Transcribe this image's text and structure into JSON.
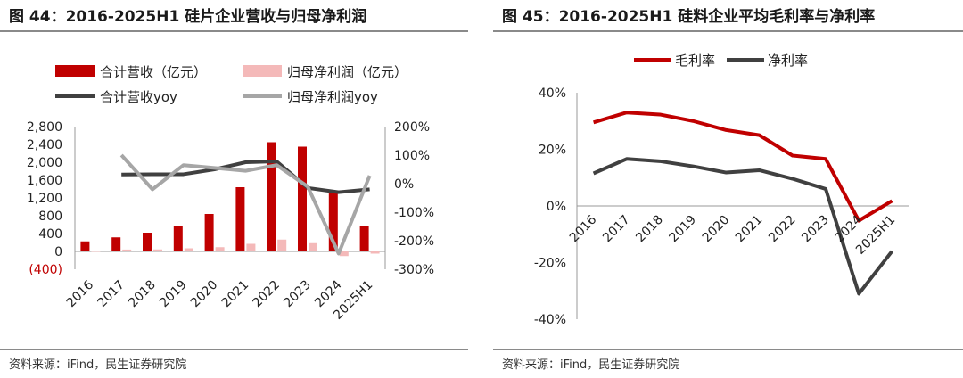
{
  "left": {
    "title": "图 44：2016-2025H1 硅片企业营收与归母净利润",
    "source": "资料来源：iFind，民生证券研究院",
    "chart_data": {
      "type": "bar",
      "categories": [
        "2016",
        "2017",
        "2018",
        "2019",
        "2020",
        "2021",
        "2022",
        "2023",
        "2024",
        "2025H1"
      ],
      "series": [
        {
          "name": "合计营收（亿元）",
          "kind": "bar",
          "axis": "left",
          "color": "#c00000",
          "values": [
            225,
            315,
            420,
            565,
            840,
            1440,
            2450,
            2350,
            1350,
            570
          ]
        },
        {
          "name": "归母净利润（亿元）",
          "kind": "bar",
          "axis": "left",
          "color": "#f4b9b9",
          "values": [
            12,
            42,
            45,
            70,
            95,
            170,
            265,
            185,
            -105,
            -50
          ]
        },
        {
          "name": "合计营收yoy",
          "kind": "line",
          "axis": "right",
          "color": "#404040",
          "values": [
            null,
            32,
            33,
            33,
            50,
            75,
            78,
            -15,
            -30,
            -20
          ]
        },
        {
          "name": "归母净利润yoy",
          "kind": "line",
          "axis": "right",
          "color": "#a6a6a6",
          "values": [
            null,
            100,
            -20,
            65,
            55,
            45,
            65,
            -10,
            -245,
            28
          ]
        }
      ],
      "y_left": {
        "range": [
          -400,
          2800
        ],
        "ticks": [
          "(400)",
          "0",
          "400",
          "800",
          "1,200",
          "1,600",
          "2,000",
          "2,400",
          "2,800"
        ]
      },
      "y_right": {
        "range": [
          -300,
          200
        ],
        "ticks": [
          "-300%",
          "-200%",
          "-100%",
          "0%",
          "100%",
          "200%"
        ]
      },
      "legend_position": "top"
    }
  },
  "right": {
    "title": "图 45：2016-2025H1 硅料企业平均毛利率与净利率",
    "source": "资料来源：iFind，民生证券研究院",
    "chart_data": {
      "type": "line",
      "categories": [
        "2016",
        "2017",
        "2018",
        "2019",
        "2020",
        "2021",
        "2022",
        "2023",
        "2024",
        "2025H1"
      ],
      "series": [
        {
          "name": "毛利率",
          "color": "#c00000",
          "values": [
            29.5,
            33,
            32.3,
            30,
            26.8,
            25,
            17.8,
            16.6,
            -5.2,
            1.8
          ]
        },
        {
          "name": "净利率",
          "color": "#404040",
          "values": [
            11.5,
            16.6,
            15.8,
            14,
            11.8,
            12.6,
            9.6,
            6,
            -31,
            -16
          ]
        }
      ],
      "y": {
        "range": [
          -40,
          40
        ],
        "ticks": [
          "40%",
          "20%",
          "0%",
          "-20%",
          "-40%"
        ]
      },
      "legend_position": "top"
    }
  }
}
